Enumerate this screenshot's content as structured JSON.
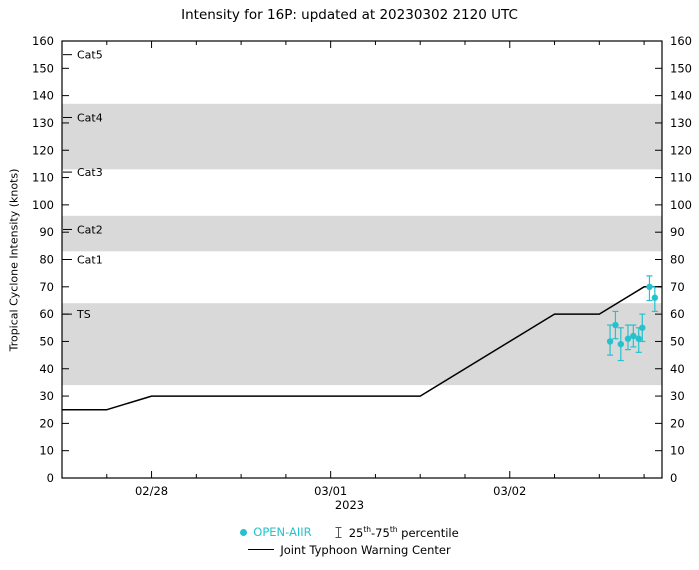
{
  "colors": {
    "band": "#d9d9d9",
    "aiir": "#25c2ce",
    "jtwc": "#000000",
    "axis": "#000000"
  },
  "legend": {
    "open_aiir": "OPEN-AIIR",
    "pct_a": "25",
    "pct_sup1": "th",
    "pct_b": "-75",
    "pct_sup2": "th",
    "pct_c": " percentile",
    "jtwc": "Joint Typhoon Warning Center"
  },
  "chart_data": {
    "type": "line",
    "title": "Intensity for 16P: updated at 20230302 2120 UTC",
    "ylabel": "Tropical Cyclone Intensity (knots)",
    "xlabel": "2023",
    "ylim": [
      0,
      160
    ],
    "yticks": [
      0,
      10,
      20,
      30,
      40,
      50,
      60,
      70,
      80,
      90,
      100,
      110,
      120,
      130,
      140,
      150,
      160
    ],
    "xlim_days": [
      0.5,
      3.85
    ],
    "x_minor_step": 0.25,
    "xticks": [
      {
        "day": 1,
        "label": "02/28"
      },
      {
        "day": 2,
        "label": "03/01"
      },
      {
        "day": 3,
        "label": "03/02"
      }
    ],
    "bands": [
      {
        "name": "TS-band",
        "lo": 34,
        "hi": 64
      },
      {
        "name": "Cat2-band",
        "lo": 83,
        "hi": 96
      },
      {
        "name": "Cat4-band",
        "lo": 113,
        "hi": 137
      }
    ],
    "category_labels": [
      {
        "label": "Cat5",
        "value": 155
      },
      {
        "label": "Cat4",
        "value": 132
      },
      {
        "label": "Cat3",
        "value": 112
      },
      {
        "label": "Cat2",
        "value": 91
      },
      {
        "label": "Cat1",
        "value": 80
      },
      {
        "label": "TS",
        "value": 60
      }
    ],
    "series": [
      {
        "name": "Joint Typhoon Warning Center",
        "type": "line",
        "points": [
          [
            0.5,
            25
          ],
          [
            0.75,
            25
          ],
          [
            1.0,
            30
          ],
          [
            2.5,
            30
          ],
          [
            3.25,
            60
          ],
          [
            3.5,
            60
          ],
          [
            3.75,
            70
          ],
          [
            3.85,
            70
          ]
        ]
      },
      {
        "name": "OPEN-AIIR",
        "type": "scatter",
        "points": [
          {
            "x": 3.56,
            "y": 50,
            "lo": 45,
            "hi": 56
          },
          {
            "x": 3.59,
            "y": 56,
            "lo": 51,
            "hi": 61
          },
          {
            "x": 3.62,
            "y": 49,
            "lo": 43,
            "hi": 55
          },
          {
            "x": 3.66,
            "y": 51,
            "lo": 47,
            "hi": 56
          },
          {
            "x": 3.69,
            "y": 52,
            "lo": 48,
            "hi": 56
          },
          {
            "x": 3.72,
            "y": 51,
            "lo": 46,
            "hi": 55
          },
          {
            "x": 3.74,
            "y": 55,
            "lo": 50,
            "hi": 60
          },
          {
            "x": 3.78,
            "y": 70,
            "lo": 65,
            "hi": 74
          },
          {
            "x": 3.81,
            "y": 66,
            "lo": 61,
            "hi": 70
          }
        ]
      }
    ]
  }
}
